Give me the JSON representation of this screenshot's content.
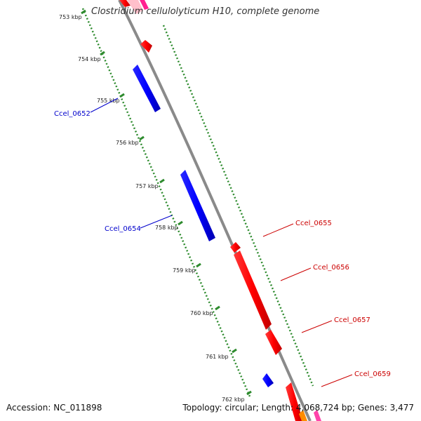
{
  "title": "Clostridium cellulolyticum H10, complete genome",
  "footer": {
    "accession": "Accession: NC_011898",
    "summary": "Topology: circular; Length: 4,068,724 bp; Genes: 3,477"
  },
  "colors": {
    "backbone": "#888888",
    "ticks": "#2e8b2e",
    "forward_gene": "#ff0000",
    "reverse_gene": "#0000ff",
    "forward_label": "#cc0000",
    "reverse_label": "#0000cc"
  },
  "scale_labels": [
    "753 kbp",
    "754 kbp",
    "755 kbp",
    "756 kbp",
    "757 kbp",
    "758 kbp",
    "759 kbp",
    "760 kbp",
    "761 kbp",
    "762 kbp"
  ],
  "gene_labels": [
    {
      "name": "Ccel_0652",
      "strand": "reverse"
    },
    {
      "name": "Ccel_0654",
      "strand": "reverse"
    },
    {
      "name": "Ccel_0655",
      "strand": "forward"
    },
    {
      "name": "Ccel_0656",
      "strand": "forward"
    },
    {
      "name": "Ccel_0657",
      "strand": "forward"
    },
    {
      "name": "Ccel_0659",
      "strand": "forward"
    }
  ]
}
